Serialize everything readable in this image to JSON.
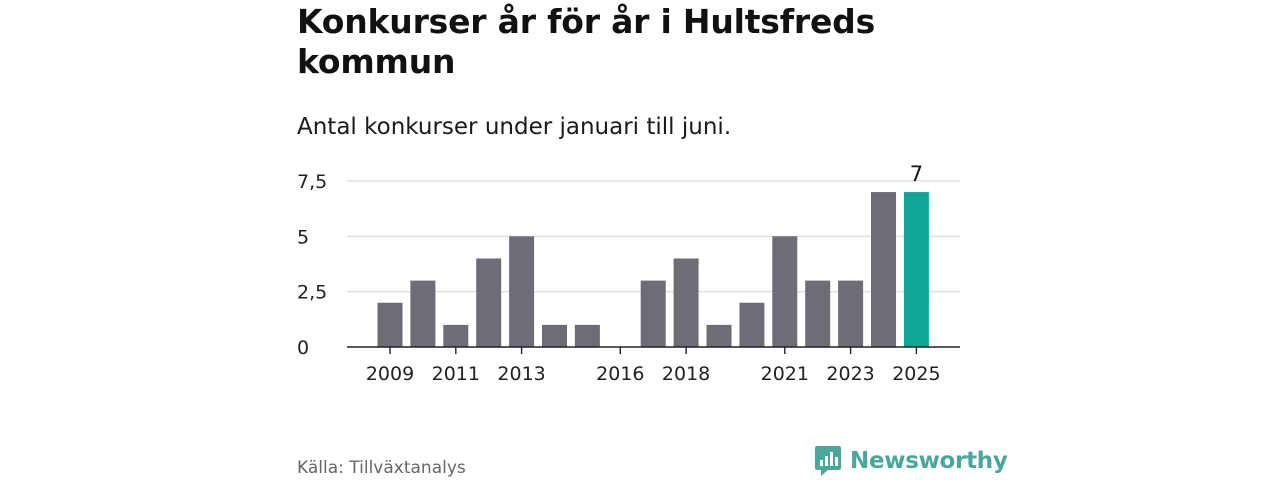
{
  "title": "Konkurser år för år i Hultsfreds kommun",
  "subtitle": "Antal konkurser under januari till juni.",
  "source": "Källa: Tillväxtanalys",
  "brand": {
    "name": "Newsworthy",
    "icon": "newsworthy-logo-icon",
    "color": "#4aa79c"
  },
  "chart_data": {
    "type": "bar",
    "categories": [
      "2009",
      "2010",
      "2011",
      "2012",
      "2013",
      "2014",
      "2015",
      "2016",
      "2017",
      "2018",
      "2019",
      "2020",
      "2021",
      "2022",
      "2023",
      "2024",
      "2025"
    ],
    "values": [
      2,
      3,
      1,
      4,
      5,
      1,
      1,
      0,
      3,
      4,
      1,
      2,
      5,
      3,
      3,
      7,
      7
    ],
    "x_tick_labels": [
      "2009",
      "",
      "2011",
      "",
      "2013",
      "",
      "",
      "2016",
      "",
      "2018",
      "",
      "",
      "2021",
      "",
      "2023",
      "",
      "2025"
    ],
    "y_ticks": [
      0,
      2.5,
      5,
      7.5
    ],
    "y_tick_labels": [
      "0",
      "2,5",
      "5",
      "7,5"
    ],
    "ylim": [
      0,
      7.5
    ],
    "xlabel": "",
    "ylabel": "",
    "grid": true,
    "colors": {
      "bar": "#6e6d75",
      "highlight": "#10a596",
      "grid": "#d9d9d9",
      "axis": "#222222"
    },
    "highlight_index": 16,
    "data_labels": [
      {
        "category": "2025",
        "text": "7"
      }
    ]
  }
}
